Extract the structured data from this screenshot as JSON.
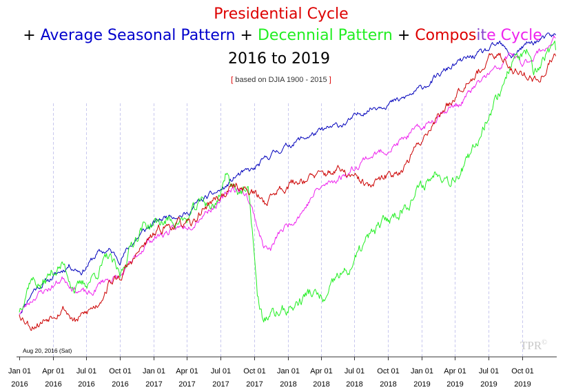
{
  "chart_data": {
    "type": "line",
    "title": {
      "line1": [
        {
          "text": "Presidential Cycle",
          "color": "#dd0000"
        }
      ],
      "line2": [
        {
          "text": "+ ",
          "color": "#000000"
        },
        {
          "text": "Average Seasonal Pattern",
          "color": "#0000cc"
        },
        {
          "text": " + ",
          "color": "#000000"
        },
        {
          "text": "Decennial Pattern",
          "color": "#22ee22"
        },
        {
          "text": " + ",
          "color": "#000000"
        },
        {
          "text": "Compos",
          "color": "#dd0000"
        },
        {
          "text": "it",
          "color": "#8844cc"
        },
        {
          "text": "e Cycle",
          "color": "#ee22ee"
        }
      ],
      "line3": "2016 to 2019"
    },
    "subtitle": {
      "open": "[",
      "text": " based on DJIA 1900 - 2015 ",
      "close": "]"
    },
    "annotation": "Aug 20, 2016 (Sat)",
    "watermark": "TPR",
    "watermark_mark": "©",
    "x_ticks": [
      {
        "month": "Jan 01",
        "year": "2016"
      },
      {
        "month": "Apr 01",
        "year": "2016"
      },
      {
        "month": "Jul 01",
        "year": "2016"
      },
      {
        "month": "Oct 01",
        "year": "2016"
      },
      {
        "month": "Jan 01",
        "year": "2017"
      },
      {
        "month": "Apr 01",
        "year": "2017"
      },
      {
        "month": "Jul 01",
        "year": "2017"
      },
      {
        "month": "Oct 01",
        "year": "2017"
      },
      {
        "month": "Jan 01",
        "year": "2018"
      },
      {
        "month": "Apr 01",
        "year": "2018"
      },
      {
        "month": "Jul 01",
        "year": "2018"
      },
      {
        "month": "Oct 01",
        "year": "2018"
      },
      {
        "month": "Jan 01",
        "year": "2019"
      },
      {
        "month": "Apr 01",
        "year": "2019"
      },
      {
        "month": "Jul 01",
        "year": "2019"
      },
      {
        "month": "Oct 01",
        "year": "2019"
      }
    ],
    "x_range": [
      "2016-01-01",
      "2020-01-01"
    ],
    "y_range": [
      0,
      100
    ],
    "grid": "vertical dashed at quarter starts",
    "series": [
      {
        "color": "#0000bb",
        "noise": 0.7,
        "seed": 11,
        "points": [
          [
            "2016-01-01",
            10
          ],
          [
            "2016-02-10",
            18
          ],
          [
            "2016-04-01",
            22
          ],
          [
            "2016-05-15",
            26
          ],
          [
            "2016-06-20",
            24
          ],
          [
            "2016-08-01",
            30
          ],
          [
            "2016-09-01",
            31
          ],
          [
            "2016-10-01",
            28
          ],
          [
            "2016-11-01",
            33
          ],
          [
            "2016-12-01",
            37
          ],
          [
            "2017-01-01",
            40
          ],
          [
            "2017-02-15",
            43
          ],
          [
            "2017-04-01",
            43
          ],
          [
            "2017-05-01",
            47
          ],
          [
            "2017-06-15",
            50
          ],
          [
            "2017-07-15",
            52
          ],
          [
            "2017-08-15",
            56
          ],
          [
            "2017-10-01",
            58
          ],
          [
            "2017-11-15",
            63
          ],
          [
            "2017-12-31",
            66
          ],
          [
            "2018-02-01",
            68
          ],
          [
            "2018-03-15",
            70
          ],
          [
            "2018-05-01",
            72
          ],
          [
            "2018-06-15",
            74
          ],
          [
            "2018-08-01",
            78
          ],
          [
            "2018-09-20",
            80
          ],
          [
            "2018-11-01",
            81
          ],
          [
            "2018-12-15",
            84
          ],
          [
            "2019-02-01",
            88
          ],
          [
            "2019-03-15",
            92
          ],
          [
            "2019-05-01",
            95
          ],
          [
            "2019-06-15",
            97
          ],
          [
            "2019-08-01",
            100
          ],
          [
            "2019-09-01",
            96
          ],
          [
            "2019-10-15",
            100
          ],
          [
            "2019-12-31",
            103
          ]
        ]
      },
      {
        "color": "#ee22ee",
        "noise": 0.8,
        "seed": 23,
        "points": [
          [
            "2016-01-01",
            10
          ],
          [
            "2016-02-15",
            16
          ],
          [
            "2016-04-01",
            19
          ],
          [
            "2016-05-01",
            22
          ],
          [
            "2016-06-01",
            18
          ],
          [
            "2016-07-15",
            16
          ],
          [
            "2016-08-15",
            21
          ],
          [
            "2016-10-01",
            22
          ],
          [
            "2016-11-10",
            28
          ],
          [
            "2016-12-15",
            34
          ],
          [
            "2017-01-15",
            36
          ],
          [
            "2017-03-01",
            38
          ],
          [
            "2017-04-15",
            40
          ],
          [
            "2017-06-01",
            45
          ],
          [
            "2017-07-01",
            47
          ],
          [
            "2017-08-01",
            52
          ],
          [
            "2017-09-10",
            50
          ],
          [
            "2017-10-01",
            43
          ],
          [
            "2017-10-25",
            33
          ],
          [
            "2017-11-15",
            31
          ],
          [
            "2017-12-10",
            37
          ],
          [
            "2018-01-15",
            41
          ],
          [
            "2018-02-15",
            45
          ],
          [
            "2018-03-20",
            51
          ],
          [
            "2018-05-01",
            54
          ],
          [
            "2018-06-15",
            57
          ],
          [
            "2018-08-01",
            62
          ],
          [
            "2018-09-15",
            64
          ],
          [
            "2018-10-20",
            66
          ],
          [
            "2018-12-01",
            70
          ],
          [
            "2019-01-15",
            73
          ],
          [
            "2019-03-01",
            78
          ],
          [
            "2019-04-15",
            80
          ],
          [
            "2019-05-20",
            85
          ],
          [
            "2019-07-01",
            90
          ],
          [
            "2019-08-01",
            92
          ],
          [
            "2019-09-01",
            97
          ],
          [
            "2019-10-01",
            93
          ],
          [
            "2019-11-01",
            96
          ],
          [
            "2019-12-15",
            100
          ],
          [
            "2019-12-31",
            102
          ]
        ]
      },
      {
        "color": "#22ee22",
        "noise": 1.3,
        "seed": 37,
        "points": [
          [
            "2016-01-01",
            11
          ],
          [
            "2016-02-01",
            22
          ],
          [
            "2016-03-01",
            19
          ],
          [
            "2016-04-01",
            24
          ],
          [
            "2016-05-01",
            26
          ],
          [
            "2016-06-01",
            18
          ],
          [
            "2016-07-01",
            20
          ],
          [
            "2016-08-01",
            24
          ],
          [
            "2016-09-01",
            29
          ],
          [
            "2016-10-01",
            22
          ],
          [
            "2016-11-01",
            33
          ],
          [
            "2016-12-01",
            39
          ],
          [
            "2017-01-01",
            40
          ],
          [
            "2017-02-15",
            41
          ],
          [
            "2017-04-01",
            41
          ],
          [
            "2017-05-15",
            48
          ],
          [
            "2017-06-15",
            45
          ],
          [
            "2017-07-15",
            56
          ],
          [
            "2017-08-15",
            52
          ],
          [
            "2017-09-15",
            50
          ],
          [
            "2017-09-28",
            36
          ],
          [
            "2017-10-10",
            15
          ],
          [
            "2017-10-25",
            8
          ],
          [
            "2017-12-01",
            10
          ],
          [
            "2018-01-15",
            12
          ],
          [
            "2018-03-01",
            17
          ],
          [
            "2018-04-15",
            14
          ],
          [
            "2018-05-15",
            22
          ],
          [
            "2018-06-15",
            24
          ],
          [
            "2018-08-01",
            34
          ],
          [
            "2018-09-15",
            40
          ],
          [
            "2018-11-01",
            44
          ],
          [
            "2018-12-15",
            50
          ],
          [
            "2019-01-15",
            54
          ],
          [
            "2019-02-15",
            58
          ],
          [
            "2019-03-15",
            55
          ],
          [
            "2019-04-01",
            56
          ],
          [
            "2019-05-15",
            62
          ],
          [
            "2019-07-01",
            77
          ],
          [
            "2019-08-01",
            84
          ],
          [
            "2019-09-01",
            94
          ],
          [
            "2019-10-15",
            97
          ],
          [
            "2019-11-01",
            88
          ],
          [
            "2019-12-01",
            96
          ],
          [
            "2019-12-31",
            98
          ]
        ]
      },
      {
        "color": "#cc0000",
        "noise": 1.0,
        "seed": 53,
        "points": [
          [
            "2016-01-01",
            10
          ],
          [
            "2016-02-01",
            6
          ],
          [
            "2016-03-01",
            7
          ],
          [
            "2016-04-01",
            10
          ],
          [
            "2016-05-01",
            12
          ],
          [
            "2016-06-01",
            7
          ],
          [
            "2016-07-01",
            10
          ],
          [
            "2016-08-01",
            13
          ],
          [
            "2016-09-01",
            20
          ],
          [
            "2016-10-01",
            22
          ],
          [
            "2016-11-01",
            27
          ],
          [
            "2016-12-01",
            32
          ],
          [
            "2017-01-01",
            36
          ],
          [
            "2017-02-01",
            39
          ],
          [
            "2017-03-15",
            40
          ],
          [
            "2017-04-15",
            39
          ],
          [
            "2017-05-15",
            45
          ],
          [
            "2017-06-15",
            48
          ],
          [
            "2017-07-15",
            50
          ],
          [
            "2017-08-15",
            53
          ],
          [
            "2017-10-01",
            50
          ],
          [
            "2017-11-01",
            47
          ],
          [
            "2017-12-01",
            51
          ],
          [
            "2018-01-01",
            53
          ],
          [
            "2018-02-15",
            55
          ],
          [
            "2018-04-01",
            56
          ],
          [
            "2018-05-15",
            58
          ],
          [
            "2018-07-01",
            55
          ],
          [
            "2018-08-15",
            52
          ],
          [
            "2018-10-01",
            56
          ],
          [
            "2018-11-15",
            59
          ],
          [
            "2018-12-15",
            65
          ],
          [
            "2019-02-01",
            74
          ],
          [
            "2019-03-15",
            80
          ],
          [
            "2019-05-01",
            88
          ],
          [
            "2019-06-15",
            92
          ],
          [
            "2019-07-15",
            96
          ],
          [
            "2019-08-15",
            95
          ],
          [
            "2019-09-10",
            91
          ],
          [
            "2019-10-15",
            90
          ],
          [
            "2019-11-15",
            87
          ],
          [
            "2019-12-15",
            94
          ],
          [
            "2019-12-31",
            96
          ]
        ]
      }
    ]
  }
}
